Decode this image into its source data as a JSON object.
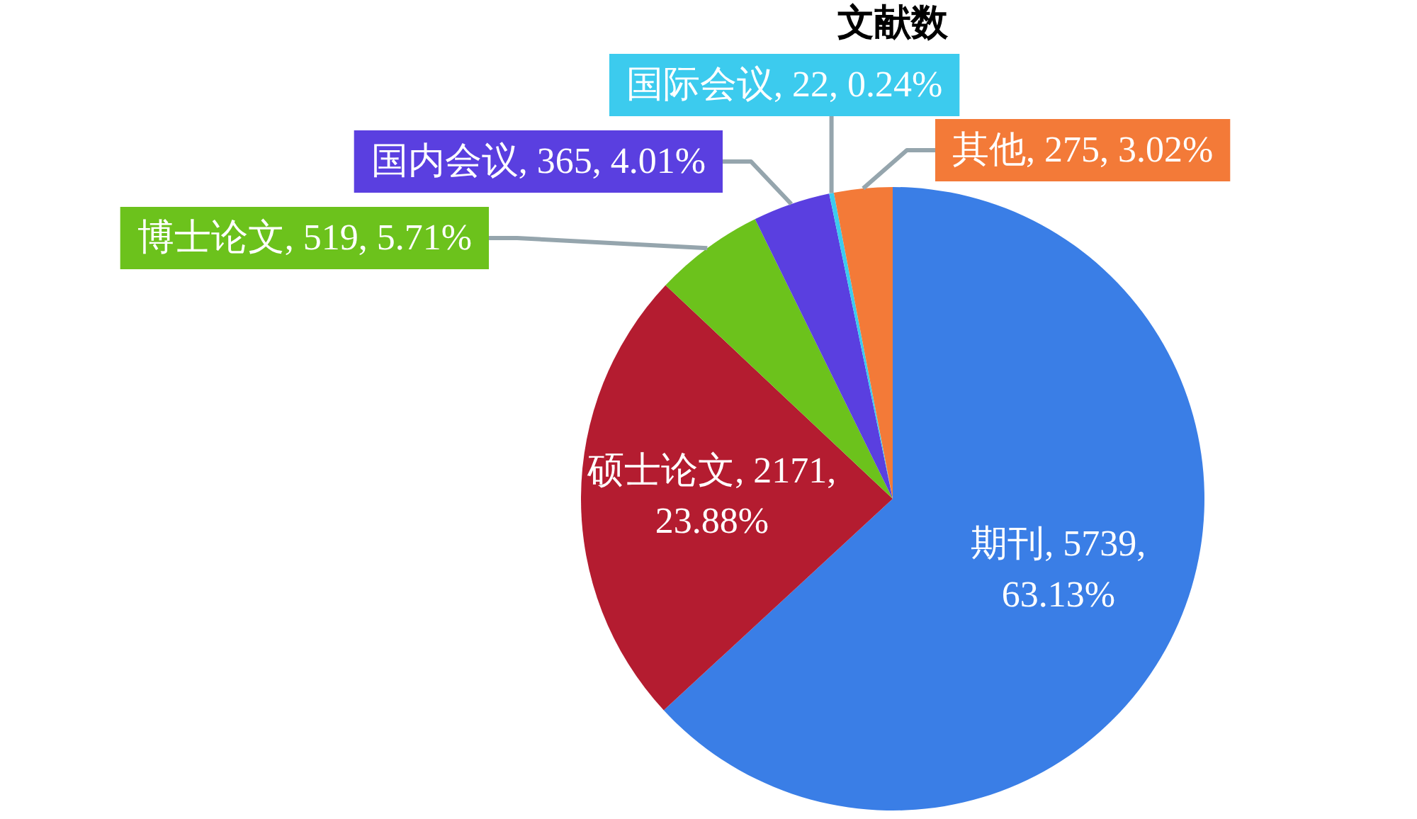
{
  "chart_data": {
    "type": "pie",
    "title": "文献数",
    "categories": [
      "期刊",
      "硕士论文",
      "博士论文",
      "国内会议",
      "国际会议",
      "其他"
    ],
    "values": [
      5739,
      2171,
      519,
      365,
      22,
      275
    ],
    "colors": [
      "#3a7ee6",
      "#b41c30",
      "#6cc21c",
      "#5a3fe0",
      "#3ccbee",
      "#f37a38"
    ],
    "value_labels": [
      "5739, 63.13%",
      "2171, 23.88%",
      "519, 5.71%",
      "365, 4.01%",
      "22, 0.24%",
      "275, 3.02%"
    ]
  }
}
